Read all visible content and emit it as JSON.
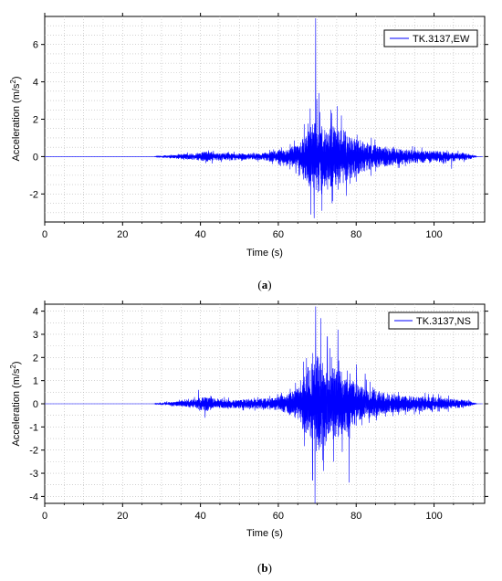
{
  "chart_data": [
    {
      "type": "line",
      "caption_letter": "a",
      "xlabel": "Time (s)",
      "ylabel": "Acceleration (m/s",
      "ylabel_sup": "2",
      "ylabel_end": ")",
      "xlim": [
        0,
        113
      ],
      "ylim": [
        -3.5,
        7.5
      ],
      "xticks": [
        0,
        20,
        40,
        60,
        80,
        100
      ],
      "yticks": [
        -2,
        0,
        2,
        4,
        6
      ],
      "grid": true,
      "legend_position": "top-right",
      "color": "#0000ff",
      "series": [
        {
          "name": "TK.3137,EW",
          "envelope": [
            [
              0,
              0
            ],
            [
              28,
              0
            ],
            [
              29,
              0.04
            ],
            [
              31,
              0.1
            ],
            [
              33,
              0.15
            ],
            [
              35,
              0.2
            ],
            [
              38,
              0.28
            ],
            [
              40,
              0.35
            ],
            [
              42,
              0.45
            ],
            [
              44,
              0.3
            ],
            [
              48,
              0.3
            ],
            [
              52,
              0.25
            ],
            [
              56,
              0.3
            ],
            [
              60,
              0.5
            ],
            [
              62,
              0.6
            ],
            [
              64,
              0.9
            ],
            [
              65,
              1.0
            ],
            [
              66,
              1.3
            ],
            [
              67,
              2.0
            ],
            [
              68,
              2.5
            ],
            [
              69,
              3.0
            ],
            [
              70,
              3.2
            ],
            [
              71,
              2.8
            ],
            [
              72,
              2.4
            ],
            [
              74,
              2.6
            ],
            [
              76,
              2.4
            ],
            [
              78,
              2.0
            ],
            [
              80,
              1.6
            ],
            [
              82,
              1.2
            ],
            [
              86,
              0.9
            ],
            [
              90,
              0.7
            ],
            [
              95,
              0.55
            ],
            [
              100,
              0.45
            ],
            [
              104,
              0.4
            ],
            [
              108,
              0.3
            ],
            [
              110,
              0.15
            ],
            [
              111,
              0
            ]
          ],
          "peaks": [
            [
              69.6,
              7.4
            ],
            [
              69.2,
              -3.3
            ],
            [
              68.3,
              -3.1
            ],
            [
              70.5,
              3.4
            ],
            [
              71.2,
              -2.9
            ],
            [
              73.5,
              2.5
            ],
            [
              75.1,
              2.7
            ],
            [
              76.2,
              2.2
            ],
            [
              73.8,
              -2.5
            ],
            [
              77.5,
              -2.1
            ],
            [
              64.5,
              -0.9
            ],
            [
              104.5,
              -0.65
            ]
          ]
        }
      ]
    },
    {
      "type": "line",
      "caption_letter": "b",
      "xlabel": "Time (s)",
      "ylabel": "Acceleration (m/s",
      "ylabel_sup": "2",
      "ylabel_end": ")",
      "xlim": [
        0,
        113
      ],
      "ylim": [
        -4.3,
        4.3
      ],
      "xticks": [
        0,
        20,
        40,
        60,
        80,
        100
      ],
      "yticks": [
        -4,
        -3,
        -2,
        -1,
        0,
        1,
        2,
        3,
        4
      ],
      "grid": true,
      "legend_position": "top-right",
      "color": "#0000ff",
      "series": [
        {
          "name": "TK.3137,NS",
          "envelope": [
            [
              0,
              0
            ],
            [
              28,
              0
            ],
            [
              29,
              0.05
            ],
            [
              31,
              0.1
            ],
            [
              33,
              0.15
            ],
            [
              36,
              0.2
            ],
            [
              38,
              0.3
            ],
            [
              40,
              0.4
            ],
            [
              42,
              0.5
            ],
            [
              44,
              0.3
            ],
            [
              48,
              0.3
            ],
            [
              52,
              0.3
            ],
            [
              56,
              0.35
            ],
            [
              60,
              0.45
            ],
            [
              62,
              0.6
            ],
            [
              64,
              0.9
            ],
            [
              65,
              1.1
            ],
            [
              66,
              1.5
            ],
            [
              67,
              2.2
            ],
            [
              68,
              2.6
            ],
            [
              69,
              3.0
            ],
            [
              70,
              3.2
            ],
            [
              71,
              3.0
            ],
            [
              72,
              2.6
            ],
            [
              74,
              2.4
            ],
            [
              76,
              2.2
            ],
            [
              78,
              1.8
            ],
            [
              80,
              1.4
            ],
            [
              82,
              1.1
            ],
            [
              86,
              0.8
            ],
            [
              90,
              0.6
            ],
            [
              95,
              0.5
            ],
            [
              100,
              0.45
            ],
            [
              104,
              0.35
            ],
            [
              108,
              0.25
            ],
            [
              110,
              0.1
            ],
            [
              111,
              0
            ]
          ],
          "peaks": [
            [
              69.6,
              4.2
            ],
            [
              69.4,
              -4.3
            ],
            [
              70.9,
              3.7
            ],
            [
              72.6,
              2.9
            ],
            [
              75.3,
              3.2
            ],
            [
              68.8,
              -3.3
            ],
            [
              71.6,
              -2.9
            ],
            [
              74.2,
              -2.5
            ],
            [
              78.2,
              -3.4
            ],
            [
              73.2,
              2.4
            ],
            [
              80.1,
              1.7
            ],
            [
              82.3,
              1.3
            ],
            [
              39.5,
              0.6
            ],
            [
              41.2,
              -0.6
            ]
          ]
        }
      ]
    }
  ]
}
